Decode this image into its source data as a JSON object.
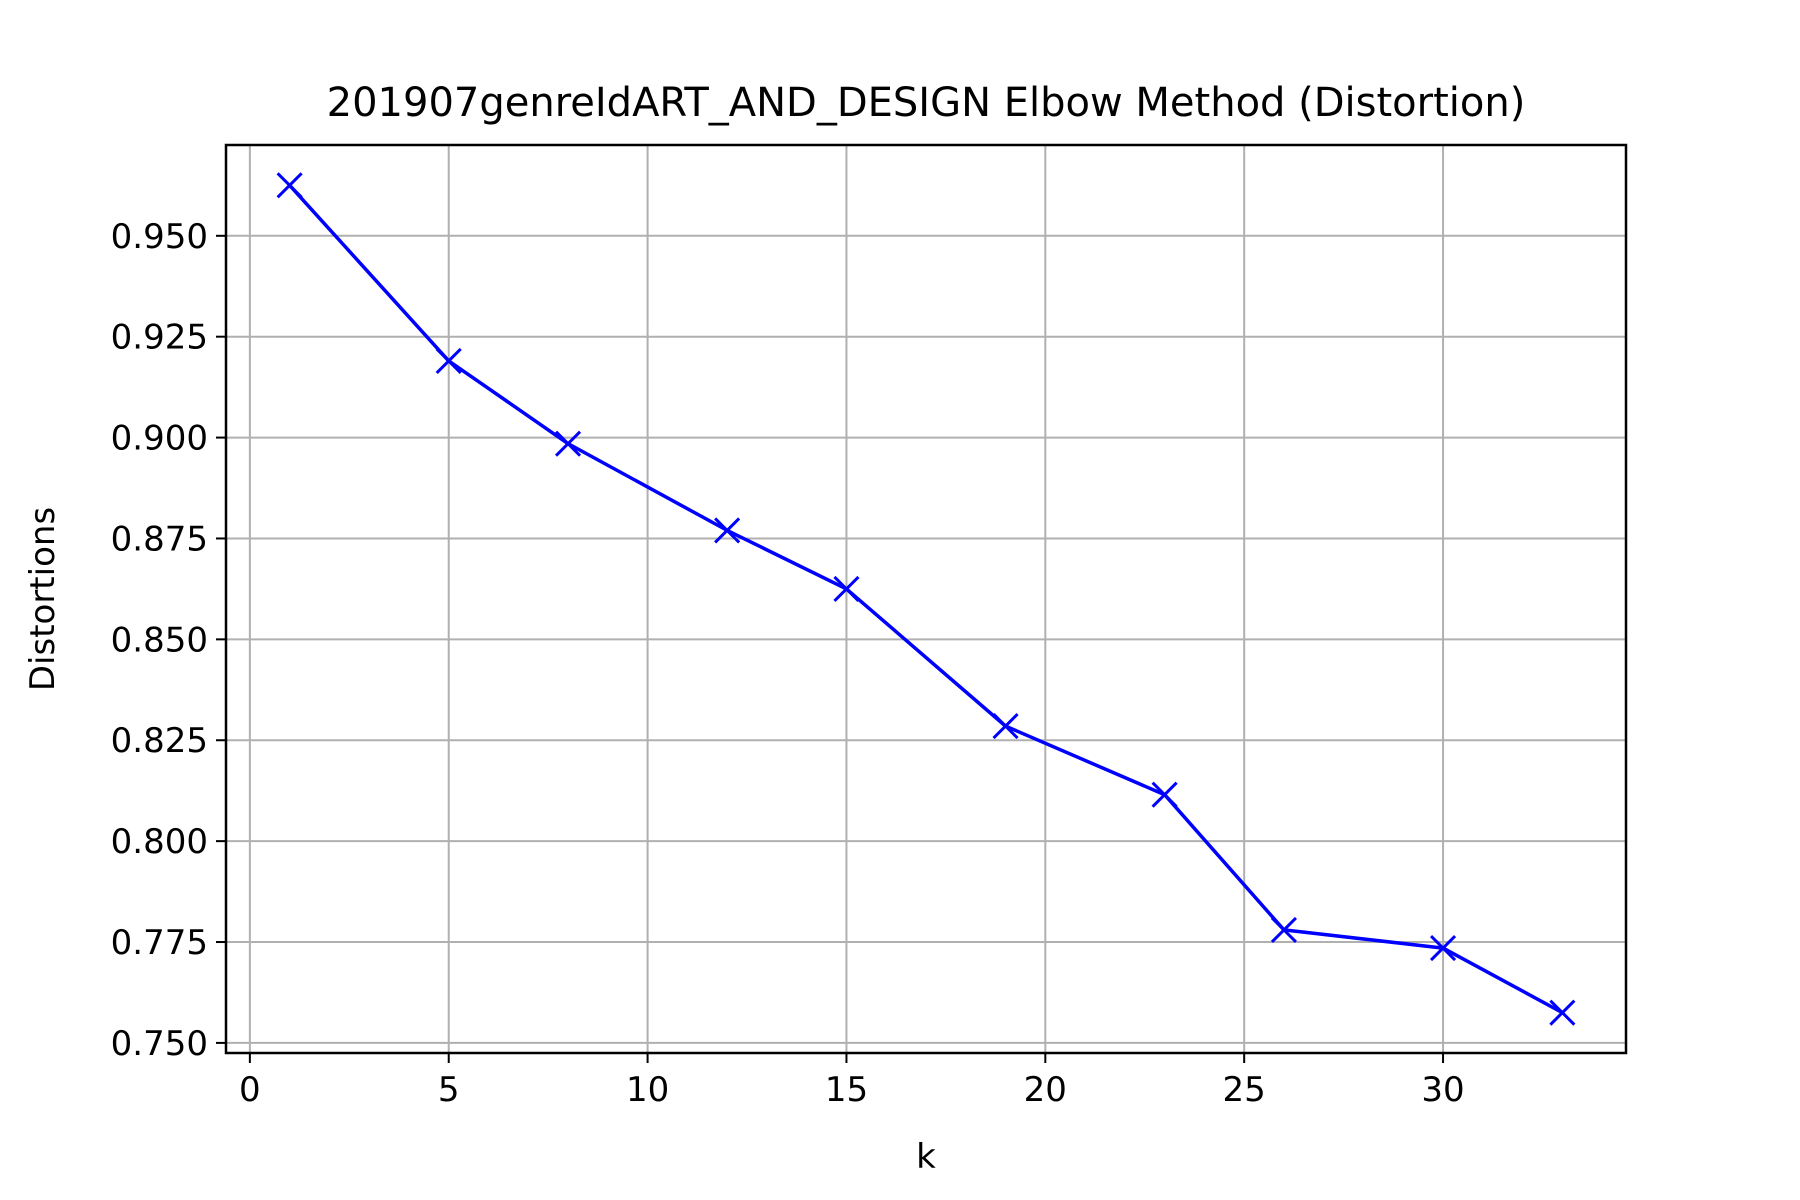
{
  "chart_data": {
    "type": "line",
    "title": "201907genreIdART_AND_DESIGN Elbow Method (Distortion)",
    "xlabel": "k",
    "ylabel": "Distortions",
    "xlim": [
      -0.6,
      34.6
    ],
    "ylim": [
      0.7475,
      0.9725
    ],
    "xticks": [
      0,
      5,
      10,
      15,
      20,
      25,
      30
    ],
    "xtick_labels": [
      "0",
      "5",
      "10",
      "15",
      "20",
      "25",
      "30"
    ],
    "yticks": [
      0.75,
      0.775,
      0.8,
      0.825,
      0.85,
      0.875,
      0.9,
      0.925,
      0.95
    ],
    "ytick_labels": [
      "0.750",
      "0.775",
      "0.800",
      "0.825",
      "0.850",
      "0.875",
      "0.900",
      "0.925",
      "0.950"
    ],
    "grid": true,
    "legend": "none",
    "series": [
      {
        "color": "#0000ff",
        "marker": "x",
        "x": [
          1,
          5,
          8,
          12,
          15,
          19,
          23,
          26,
          30,
          33
        ],
        "y": [
          0.9625,
          0.919,
          0.8985,
          0.877,
          0.8625,
          0.8285,
          0.8115,
          0.778,
          0.7735,
          0.7575
        ]
      }
    ],
    "colors": {
      "grid": "#b0b0b0",
      "frame": "#000000"
    }
  }
}
